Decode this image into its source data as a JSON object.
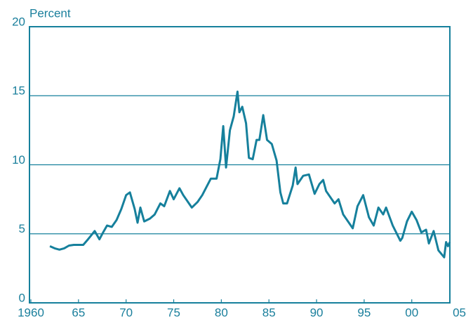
{
  "chart_data": {
    "type": "line",
    "ylabel": "Percent",
    "color": "#16809c",
    "grid": true,
    "xlim": [
      1960,
      2004
    ],
    "ylim": [
      0,
      20
    ],
    "yticks": [
      0,
      5,
      10,
      15,
      20
    ],
    "xticks": [
      {
        "value": 1960,
        "label": "1960"
      },
      {
        "value": 1965,
        "label": "65"
      },
      {
        "value": 1970,
        "label": "70"
      },
      {
        "value": 1975,
        "label": "75"
      },
      {
        "value": 1980,
        "label": "80"
      },
      {
        "value": 1985,
        "label": "85"
      },
      {
        "value": 1990,
        "label": "90"
      },
      {
        "value": 1995,
        "label": "95"
      },
      {
        "value": 2000,
        "label": "00"
      },
      {
        "value": 2005,
        "label": "05"
      }
    ],
    "series": [
      {
        "x": [
          1962.0,
          1962.5,
          1963.0,
          1963.5,
          1964.0,
          1964.5,
          1965.0,
          1965.5,
          1966.0,
          1966.7,
          1967.2,
          1967.5,
          1968.0,
          1968.5,
          1969.0,
          1969.5,
          1970.0,
          1970.4,
          1970.9,
          1971.2,
          1971.5,
          1971.9,
          1972.5,
          1973.0,
          1973.6,
          1974.0,
          1974.6,
          1975.0,
          1975.6,
          1976.0,
          1976.9,
          1977.5,
          1978.0,
          1978.9,
          1979.5,
          1979.9,
          1980.2,
          1980.5,
          1980.9,
          1981.3,
          1981.7,
          1981.9,
          1982.2,
          1982.6,
          1982.9,
          1983.3,
          1983.7,
          1984.0,
          1984.4,
          1984.8,
          1985.3,
          1985.8,
          1986.2,
          1986.5,
          1986.9,
          1987.5,
          1987.8,
          1988.0,
          1988.6,
          1989.2,
          1989.8,
          1990.3,
          1990.7,
          1991.0,
          1991.9,
          1992.3,
          1992.8,
          1993.8,
          1994.3,
          1994.9,
          1995.5,
          1996.0,
          1996.5,
          1997.0,
          1997.3,
          1998.0,
          1998.8,
          1999.0,
          1999.5,
          2000.0,
          2000.5,
          2001.0,
          2001.5,
          2001.8,
          2002.3,
          2002.8,
          2003.4,
          2003.6,
          2003.8,
          2004.0
        ],
        "values": [
          4.1,
          3.95,
          3.85,
          3.95,
          4.15,
          4.2,
          4.2,
          4.2,
          4.6,
          5.2,
          4.6,
          5.0,
          5.6,
          5.5,
          6.0,
          6.8,
          7.8,
          8.0,
          6.8,
          5.8,
          6.9,
          5.9,
          6.1,
          6.4,
          7.2,
          7.0,
          8.1,
          7.5,
          8.3,
          7.8,
          6.9,
          7.3,
          7.8,
          9.0,
          9.0,
          10.4,
          12.8,
          9.8,
          12.5,
          13.5,
          15.3,
          13.8,
          14.2,
          13.0,
          10.5,
          10.4,
          11.8,
          11.8,
          13.6,
          11.8,
          11.5,
          10.3,
          8.0,
          7.2,
          7.2,
          8.5,
          9.8,
          8.6,
          9.2,
          9.3,
          7.9,
          8.6,
          8.9,
          8.1,
          7.2,
          7.5,
          6.4,
          5.4,
          7.0,
          7.8,
          6.2,
          5.6,
          6.9,
          6.4,
          6.9,
          5.6,
          4.5,
          4.7,
          5.9,
          6.6,
          6.0,
          5.1,
          5.3,
          4.3,
          5.2,
          3.8,
          3.3,
          4.4,
          4.1,
          4.4
        ]
      }
    ]
  }
}
